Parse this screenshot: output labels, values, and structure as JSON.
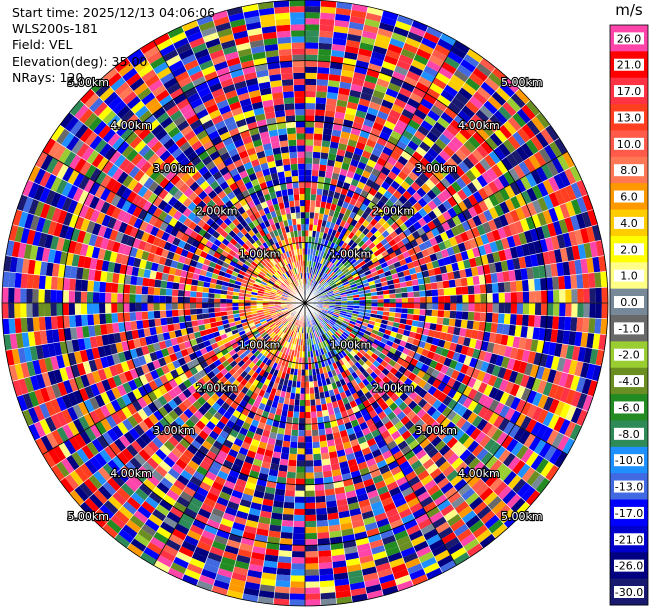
{
  "header": {
    "start_time": "Start time: 2025/12/13 04:06:06",
    "instrument": "WLS200s-181",
    "field": "Field: VEL",
    "elevation": "Elevation(deg): 35.00",
    "nrays": "NRays: 120"
  },
  "colorbar": {
    "unit": "m/s",
    "entries": [
      {
        "label": "26.0",
        "color": "#ff44aa"
      },
      {
        "label": "21.0",
        "color": "#ff0000"
      },
      {
        "label": "17.0",
        "color": "#ff3344"
      },
      {
        "label": "13.0",
        "color": "#ff3f1f"
      },
      {
        "label": "10.0",
        "color": "#ff5a4a"
      },
      {
        "label": "8.0",
        "color": "#ff7755"
      },
      {
        "label": "6.0",
        "color": "#ff9900"
      },
      {
        "label": "4.0",
        "color": "#ffcc00"
      },
      {
        "label": "2.0",
        "color": "#ffff00"
      },
      {
        "label": "1.0",
        "color": "#ffff88"
      },
      {
        "label": "0.0",
        "color": "#778899"
      },
      {
        "label": "-1.0",
        "color": "#696969"
      },
      {
        "label": "-2.0",
        "color": "#9acd32"
      },
      {
        "label": "-4.0",
        "color": "#6b8e23"
      },
      {
        "label": "-6.0",
        "color": "#228b22"
      },
      {
        "label": "-8.0",
        "color": "#2e8b57"
      },
      {
        "label": "-10.0",
        "color": "#1e90ff"
      },
      {
        "label": "-13.0",
        "color": "#4169e1"
      },
      {
        "label": "-17.0",
        "color": "#0000ff"
      },
      {
        "label": "-21.0",
        "color": "#0000cd"
      },
      {
        "label": "-26.0",
        "color": "#000080"
      },
      {
        "label": "-30.0",
        "color": "#191970"
      }
    ]
  },
  "chart_data": {
    "type": "heatmap",
    "projection": "polar PPI",
    "field": "VEL",
    "unit": "m/s",
    "nrays": 120,
    "range_rings_km": [
      1.0,
      2.0,
      3.0,
      4.0,
      5.0
    ],
    "range_ring_labels": [
      "1.00km",
      "2.00km",
      "3.00km",
      "4.00km",
      "5.00km"
    ],
    "max_range_km": 5.0,
    "gates_per_ray": 50,
    "bin_boundaries": [
      -30,
      -26,
      -21,
      -17,
      -13,
      -10,
      -8,
      -6,
      -4,
      -2,
      -1,
      0,
      1,
      2,
      4,
      6,
      8,
      10,
      13,
      17,
      21,
      26,
      30
    ],
    "pattern": {
      "near_field_km": 1.2,
      "approaching_sector_deg": [
        0,
        180
      ],
      "approaching_range_ms": [
        -17,
        -1
      ],
      "receding_range_ms": [
        1,
        17
      ],
      "far_field": "noise across full scale"
    }
  }
}
